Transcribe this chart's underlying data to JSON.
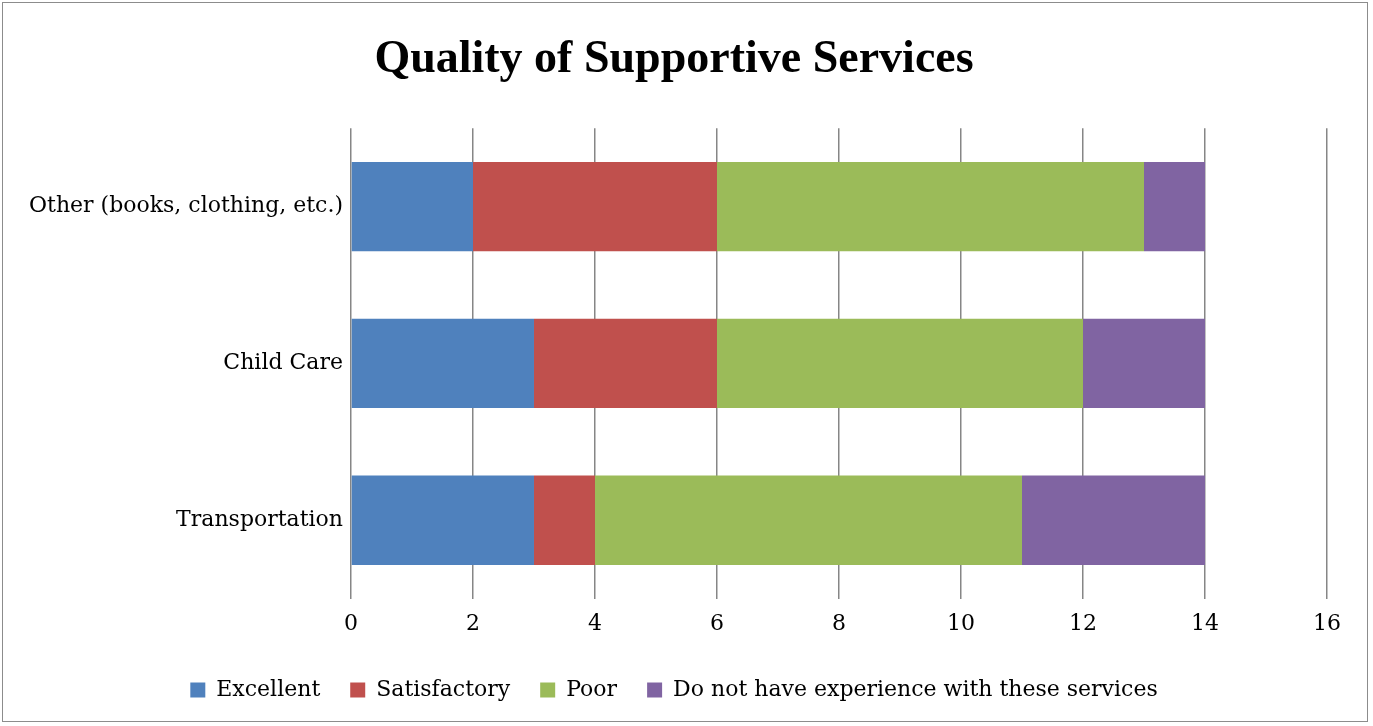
{
  "chart_data": {
    "type": "bar",
    "orientation": "horizontal",
    "stacked": true,
    "title": "Quality of Supportive Services",
    "categories": [
      "Other (books, clothing, etc.)",
      "Child Care",
      "Transportation"
    ],
    "series": [
      {
        "name": "Excellent",
        "color": "#4f81bd",
        "values": [
          2,
          3,
          3
        ]
      },
      {
        "name": "Satisfactory",
        "color": "#c0504d",
        "values": [
          4,
          3,
          1
        ]
      },
      {
        "name": "Poor",
        "color": "#9bbb59",
        "values": [
          7,
          6,
          7
        ]
      },
      {
        "name": "Do not have experience with these services",
        "color": "#8064a2",
        "values": [
          1,
          2,
          3
        ]
      }
    ],
    "xlim": [
      0,
      16
    ],
    "xticks": [
      0,
      2,
      4,
      6,
      8,
      10,
      12,
      14,
      16
    ],
    "grid": "x",
    "legend": "bottom"
  }
}
